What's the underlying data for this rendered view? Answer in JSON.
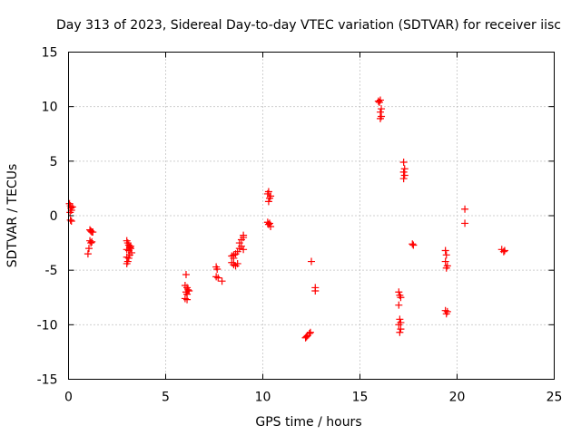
{
  "chart_data": {
    "type": "scatter",
    "title": "Day 313 of 2023, Sidereal Day-to-day VTEC variation (SDTVAR) for receiver iisc",
    "xlabel": "GPS time / hours",
    "ylabel": "SDTVAR / TECUs",
    "xlim": [
      0,
      25
    ],
    "ylim": [
      -15,
      15
    ],
    "xticks": [
      0,
      5,
      10,
      15,
      20,
      25
    ],
    "yticks": [
      -15,
      -10,
      -5,
      0,
      5,
      10,
      15
    ],
    "grid": true,
    "marker": "+",
    "color": "#ff0000",
    "points": [
      [
        0.05,
        1.1
      ],
      [
        0.1,
        0.9
      ],
      [
        0.12,
        0.7
      ],
      [
        0.15,
        0.5
      ],
      [
        0.08,
        0.3
      ],
      [
        0.1,
        -0.4
      ],
      [
        0.15,
        -0.5
      ],
      [
        0.2,
        0.8
      ],
      [
        1.1,
        -1.3
      ],
      [
        1.15,
        -1.4
      ],
      [
        1.2,
        -1.5
      ],
      [
        1.25,
        -1.5
      ],
      [
        1.1,
        -2.3
      ],
      [
        1.15,
        -2.5
      ],
      [
        1.2,
        -2.4
      ],
      [
        1.05,
        -3.0
      ],
      [
        1.0,
        -3.5
      ],
      [
        3.0,
        -2.3
      ],
      [
        3.05,
        -2.5
      ],
      [
        3.1,
        -2.7
      ],
      [
        3.15,
        -2.9
      ],
      [
        3.0,
        -3.1
      ],
      [
        3.1,
        -3.2
      ],
      [
        3.2,
        -2.8
      ],
      [
        3.25,
        -3.4
      ],
      [
        3.0,
        -3.8
      ],
      [
        3.1,
        -3.9
      ],
      [
        3.05,
        -4.2
      ],
      [
        3.0,
        -4.4
      ],
      [
        3.15,
        -3.6
      ],
      [
        3.2,
        -3.0
      ],
      [
        6.05,
        -5.4
      ],
      [
        6.0,
        -6.4
      ],
      [
        6.1,
        -6.6
      ],
      [
        6.15,
        -6.8
      ],
      [
        6.05,
        -7.0
      ],
      [
        6.2,
        -6.9
      ],
      [
        6.1,
        -7.2
      ],
      [
        6.0,
        -7.6
      ],
      [
        6.1,
        -7.7
      ],
      [
        7.6,
        -4.7
      ],
      [
        7.65,
        -4.9
      ],
      [
        7.7,
        -5.7
      ],
      [
        7.6,
        -5.6
      ],
      [
        7.9,
        -6.0
      ],
      [
        8.4,
        -3.7
      ],
      [
        8.5,
        -3.6
      ],
      [
        8.6,
        -3.5
      ],
      [
        8.7,
        -3.3
      ],
      [
        8.4,
        -4.3
      ],
      [
        8.5,
        -4.5
      ],
      [
        8.6,
        -4.6
      ],
      [
        8.7,
        -4.4
      ],
      [
        8.8,
        -3.0
      ],
      [
        8.9,
        -2.8
      ],
      [
        9.0,
        -3.1
      ],
      [
        8.9,
        -2.2
      ],
      [
        9.0,
        -2.0
      ],
      [
        9.0,
        -1.8
      ],
      [
        8.8,
        -2.5
      ],
      [
        8.5,
        -3.9
      ],
      [
        10.25,
        2.0
      ],
      [
        10.3,
        2.2
      ],
      [
        10.35,
        1.6
      ],
      [
        10.3,
        1.3
      ],
      [
        10.4,
        1.8
      ],
      [
        10.25,
        -0.6
      ],
      [
        10.3,
        -0.8
      ],
      [
        10.4,
        -1.0
      ],
      [
        10.35,
        -0.7
      ],
      [
        12.2,
        -11.2
      ],
      [
        12.3,
        -11.0
      ],
      [
        12.4,
        -10.8
      ],
      [
        12.45,
        -10.7
      ],
      [
        12.25,
        -11.1
      ],
      [
        12.5,
        -4.2
      ],
      [
        12.7,
        -6.6
      ],
      [
        12.7,
        -6.9
      ],
      [
        15.95,
        10.5
      ],
      [
        16.0,
        10.4
      ],
      [
        16.05,
        10.6
      ],
      [
        16.1,
        9.8
      ],
      [
        16.05,
        9.5
      ],
      [
        16.1,
        9.1
      ],
      [
        16.05,
        8.9
      ],
      [
        17.0,
        -7.0
      ],
      [
        17.05,
        -7.3
      ],
      [
        17.1,
        -7.5
      ],
      [
        17.0,
        -8.2
      ],
      [
        17.05,
        -9.5
      ],
      [
        17.1,
        -9.8
      ],
      [
        17.0,
        -10.0
      ],
      [
        17.1,
        -10.4
      ],
      [
        17.05,
        -10.7
      ],
      [
        17.25,
        4.9
      ],
      [
        17.3,
        4.3
      ],
      [
        17.25,
        4.0
      ],
      [
        17.3,
        3.7
      ],
      [
        17.25,
        3.4
      ],
      [
        17.7,
        -2.6
      ],
      [
        17.75,
        -2.7
      ],
      [
        19.4,
        -3.2
      ],
      [
        19.45,
        -3.6
      ],
      [
        19.4,
        -4.2
      ],
      [
        19.5,
        -4.6
      ],
      [
        19.45,
        -4.8
      ],
      [
        19.4,
        -8.7
      ],
      [
        19.5,
        -8.8
      ],
      [
        19.45,
        -9.0
      ],
      [
        20.4,
        0.6
      ],
      [
        20.4,
        -0.7
      ],
      [
        22.3,
        -3.1
      ],
      [
        22.4,
        -3.3
      ],
      [
        22.45,
        -3.2
      ]
    ]
  }
}
